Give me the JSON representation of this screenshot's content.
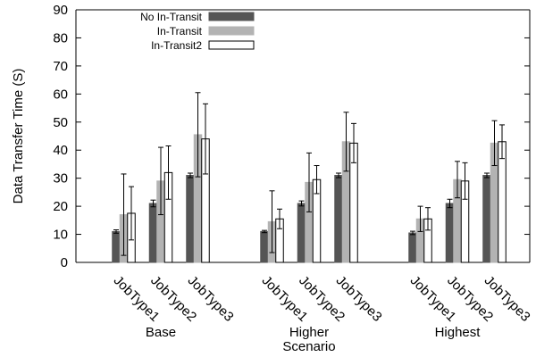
{
  "chart_data": {
    "type": "bar",
    "ylabel": "Data Transfer Time (S)",
    "xlabel": "Scenario",
    "ylim": [
      0,
      90
    ],
    "yticks": [
      0,
      10,
      20,
      30,
      40,
      50,
      60,
      70,
      80,
      90
    ],
    "grid": false,
    "legend_position": "top-left",
    "groups": [
      "Base",
      "Higher",
      "Highest"
    ],
    "categories": [
      "JobType1",
      "JobType2",
      "JobType3"
    ],
    "series": [
      {
        "name": "No In-Transit",
        "color": "#555555",
        "outline": "#555555",
        "values": [
          [
            11,
            21,
            31
          ],
          [
            11,
            21,
            31
          ],
          [
            10.5,
            21,
            31
          ]
        ],
        "errors": [
          [
            0.6,
            1.2,
            0.8
          ],
          [
            0.4,
            0.9,
            0.8
          ],
          [
            0.6,
            1.5,
            0.8
          ]
        ]
      },
      {
        "name": "In-Transit",
        "color": "#b3b3b3",
        "outline": "#b3b3b3",
        "values": [
          [
            17,
            29,
            45.5
          ],
          [
            14.5,
            28.5,
            43
          ],
          [
            15.5,
            29.5,
            42.5
          ]
        ],
        "errors": [
          [
            14.5,
            12,
            15
          ],
          [
            11,
            10.5,
            10.5
          ],
          [
            4.5,
            6.5,
            8
          ]
        ]
      },
      {
        "name": "In-Transit2",
        "color": "#ffffff",
        "outline": "#000000",
        "values": [
          [
            17.5,
            32,
            44
          ],
          [
            15.5,
            29.5,
            42.5
          ],
          [
            15.5,
            29,
            43
          ]
        ],
        "errors": [
          [
            9.5,
            9.5,
            12.5
          ],
          [
            3.5,
            5,
            7
          ],
          [
            4,
            6.5,
            6
          ]
        ]
      }
    ]
  }
}
